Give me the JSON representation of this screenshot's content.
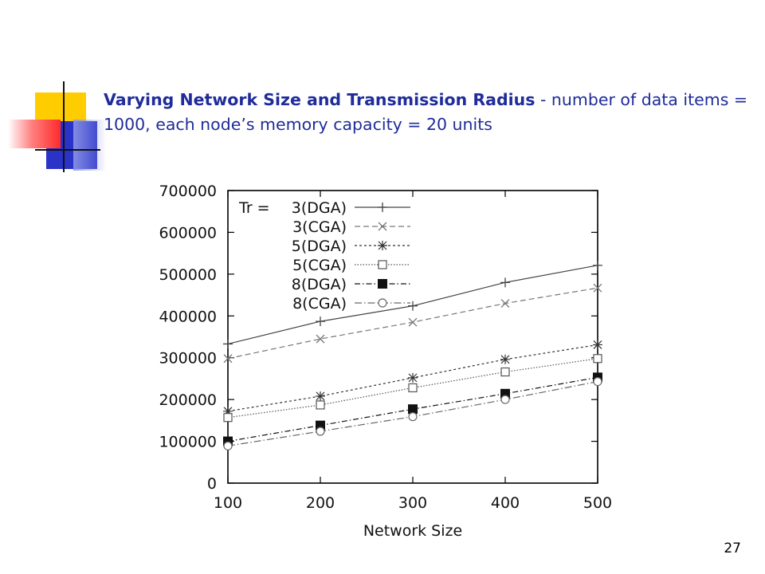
{
  "slide": {
    "title_bold": "Varying Network Size and Transmission Radius",
    "title_rest": " -  number of data items = 1000, each node’s memory capacity = 20 units",
    "page_number": "27"
  },
  "chart_data": {
    "type": "line",
    "title": "",
    "xlabel": "Network Size",
    "ylabel": "",
    "x": [
      100,
      200,
      300,
      400,
      500
    ],
    "xlim": [
      100,
      500
    ],
    "ylim": [
      0,
      700000
    ],
    "xticks": [
      100,
      200,
      300,
      400,
      500
    ],
    "yticks": [
      0,
      100000,
      200000,
      300000,
      400000,
      500000,
      600000,
      700000
    ],
    "grid": false,
    "legend_title": "Tr =",
    "legend_position": "top-left",
    "series": [
      {
        "name": "3(DGA)",
        "marker": "plus",
        "dash": "",
        "color": "#444444",
        "values": [
          333000,
          387000,
          424000,
          480000,
          521000
        ]
      },
      {
        "name": "3(CGA)",
        "marker": "cross",
        "dash": "7,4",
        "color": "#777777",
        "values": [
          298000,
          345000,
          385000,
          430000,
          467000
        ]
      },
      {
        "name": "5(DGA)",
        "marker": "star",
        "dash": "3,3",
        "color": "#333333",
        "values": [
          172000,
          208000,
          252000,
          296000,
          331000
        ]
      },
      {
        "name": "5(CGA)",
        "marker": "square-open",
        "dash": "1.5,2",
        "color": "#555555",
        "values": [
          157000,
          187000,
          228000,
          266000,
          298000
        ]
      },
      {
        "name": "8(DGA)",
        "marker": "square-filled",
        "dash": "7,3,1.5,3",
        "color": "#111111",
        "values": [
          100000,
          138000,
          177000,
          214000,
          253000
        ]
      },
      {
        "name": "8(CGA)",
        "marker": "circle-open",
        "dash": "9,3,1.5,3",
        "color": "#666666",
        "values": [
          89000,
          124000,
          159000,
          200000,
          243000
        ]
      }
    ]
  }
}
